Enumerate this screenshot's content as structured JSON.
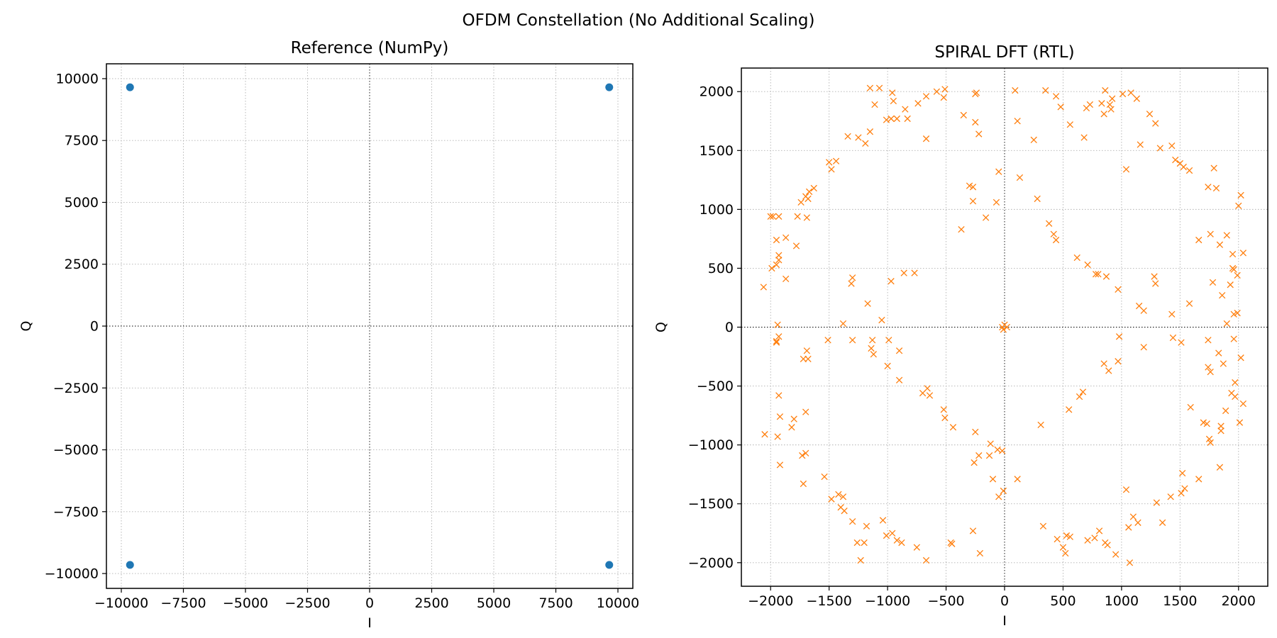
{
  "title": "OFDM Constellation (No Additional Scaling)",
  "chart_data": [
    {
      "type": "scatter",
      "title": "Reference (NumPy)",
      "xlabel": "I",
      "ylabel": "Q",
      "xlim": [
        -10600,
        10600
      ],
      "ylim": [
        -10600,
        10600
      ],
      "xticks": [
        -10000,
        -7500,
        -5000,
        -2500,
        0,
        2500,
        5000,
        7500,
        10000
      ],
      "yticks": [
        -10000,
        -7500,
        -5000,
        -2500,
        0,
        2500,
        5000,
        7500,
        10000
      ],
      "grid": true,
      "marker": "dot",
      "color": "#1f77b4",
      "series": [
        {
          "points": [
            [
              -9650,
              9650
            ],
            [
              9650,
              9650
            ],
            [
              -9650,
              -9650
            ],
            [
              9650,
              -9650
            ]
          ]
        }
      ]
    },
    {
      "type": "scatter",
      "title": "SPIRAL DFT (RTL)",
      "xlabel": "I",
      "ylabel": "Q",
      "xlim": [
        -2250,
        2250
      ],
      "ylim": [
        -2200,
        2200
      ],
      "xticks": [
        -2000,
        -1500,
        -1000,
        -500,
        0,
        500,
        1000,
        1500,
        2000
      ],
      "yticks": [
        -2000,
        -1500,
        -1000,
        -500,
        0,
        500,
        1000,
        1500,
        2000
      ],
      "grid": true,
      "marker": "x",
      "color": "#ff7f0e",
      "series": [
        {
          "points": [
            [
              -1150,
              2030
            ],
            [
              -1070,
              2030
            ],
            [
              -960,
              1990
            ],
            [
              -510,
              2020
            ],
            [
              -580,
              2000
            ],
            [
              -250,
              1980
            ],
            [
              90,
              2010
            ],
            [
              350,
              2010
            ],
            [
              860,
              2010
            ],
            [
              1010,
              1980
            ],
            [
              1080,
              1990
            ],
            [
              -1110,
              1890
            ],
            [
              -950,
              1920
            ],
            [
              -850,
              1850
            ],
            [
              -740,
              1900
            ],
            [
              -670,
              1960
            ],
            [
              -520,
              1950
            ],
            [
              -240,
              1990
            ],
            [
              440,
              1960
            ],
            [
              480,
              1870
            ],
            [
              700,
              1860
            ],
            [
              730,
              1890
            ],
            [
              830,
              1900
            ],
            [
              900,
              1890
            ],
            [
              920,
              1940
            ],
            [
              1130,
              1940
            ],
            [
              -1010,
              1760
            ],
            [
              -970,
              1770
            ],
            [
              -920,
              1770
            ],
            [
              -830,
              1770
            ],
            [
              -350,
              1800
            ],
            [
              -250,
              1740
            ],
            [
              110,
              1750
            ],
            [
              560,
              1720
            ],
            [
              850,
              1810
            ],
            [
              910,
              1850
            ],
            [
              1240,
              1810
            ],
            [
              1290,
              1730
            ],
            [
              -1340,
              1620
            ],
            [
              -1250,
              1610
            ],
            [
              -1190,
              1560
            ],
            [
              -1150,
              1660
            ],
            [
              -670,
              1600
            ],
            [
              -220,
              1640
            ],
            [
              250,
              1590
            ],
            [
              680,
              1610
            ],
            [
              1160,
              1550
            ],
            [
              1330,
              1520
            ],
            [
              1430,
              1540
            ],
            [
              -1500,
              1400
            ],
            [
              -1440,
              1410
            ],
            [
              -1480,
              1340
            ],
            [
              1460,
              1420
            ],
            [
              1500,
              1390
            ],
            [
              1530,
              1360
            ],
            [
              1580,
              1330
            ],
            [
              1790,
              1350
            ],
            [
              1040,
              1340
            ],
            [
              -50,
              1320
            ],
            [
              130,
              1270
            ],
            [
              -1630,
              1180
            ],
            [
              -1670,
              1150
            ],
            [
              -1700,
              1110
            ],
            [
              -1740,
              1060
            ],
            [
              -1680,
              1090
            ],
            [
              -300,
              1200
            ],
            [
              -270,
              1190
            ],
            [
              -270,
              1070
            ],
            [
              -70,
              1060
            ],
            [
              280,
              1090
            ],
            [
              1740,
              1190
            ],
            [
              1810,
              1180
            ],
            [
              -2000,
              940
            ],
            [
              -1980,
              940
            ],
            [
              -1930,
              940
            ],
            [
              -1770,
              940
            ],
            [
              -1690,
              930
            ],
            [
              -160,
              930
            ],
            [
              380,
              880
            ],
            [
              2020,
              1120
            ],
            [
              2000,
              1030
            ],
            [
              -1950,
              740
            ],
            [
              -1870,
              760
            ],
            [
              -1780,
              690
            ],
            [
              -370,
              830
            ],
            [
              420,
              790
            ],
            [
              440,
              740
            ],
            [
              1660,
              740
            ],
            [
              1760,
              790
            ],
            [
              1840,
              700
            ],
            [
              1900,
              780
            ],
            [
              -1930,
              610
            ],
            [
              -1930,
              570
            ],
            [
              -1950,
              530
            ],
            [
              -1990,
              500
            ],
            [
              -1870,
              410
            ],
            [
              -2060,
              340
            ],
            [
              2040,
              630
            ],
            [
              1950,
              620
            ],
            [
              1960,
              490
            ],
            [
              1950,
              500
            ],
            [
              1990,
              440
            ],
            [
              -1300,
              420
            ],
            [
              -1310,
              370
            ],
            [
              -860,
              460
            ],
            [
              -770,
              460
            ],
            [
              -970,
              390
            ],
            [
              620,
              590
            ],
            [
              710,
              530
            ],
            [
              780,
              450
            ],
            [
              800,
              450
            ],
            [
              870,
              430
            ],
            [
              970,
              320
            ],
            [
              1280,
              430
            ],
            [
              1290,
              370
            ],
            [
              1930,
              360
            ],
            [
              1780,
              380
            ],
            [
              -1170,
              200
            ],
            [
              1150,
              180
            ],
            [
              1190,
              140
            ],
            [
              1580,
              200
            ],
            [
              1860,
              270
            ],
            [
              1960,
              110
            ],
            [
              1990,
              120
            ],
            [
              -1940,
              20
            ],
            [
              -1380,
              30
            ],
            [
              -1050,
              60
            ],
            [
              -20,
              0
            ],
            [
              0,
              20
            ],
            [
              20,
              0
            ],
            [
              -10,
              -20
            ],
            [
              1430,
              110
            ],
            [
              1900,
              30
            ],
            [
              -1930,
              -80
            ],
            [
              -1950,
              -120
            ],
            [
              -1510,
              -110
            ],
            [
              -1300,
              -110
            ],
            [
              -1130,
              -110
            ],
            [
              -1140,
              -180
            ],
            [
              -1120,
              -230
            ],
            [
              -990,
              -110
            ],
            [
              -900,
              -200
            ],
            [
              980,
              -80
            ],
            [
              1440,
              -90
            ],
            [
              1510,
              -130
            ],
            [
              1740,
              -110
            ],
            [
              1960,
              -100
            ],
            [
              1190,
              -170
            ],
            [
              1830,
              -220
            ],
            [
              1870,
              -310
            ],
            [
              2020,
              -260
            ],
            [
              -1950,
              -130
            ],
            [
              -1720,
              -270
            ],
            [
              -1690,
              -200
            ],
            [
              -1680,
              -270
            ],
            [
              -1000,
              -330
            ],
            [
              850,
              -310
            ],
            [
              970,
              -290
            ],
            [
              890,
              -370
            ],
            [
              1760,
              -380
            ],
            [
              1740,
              -340
            ],
            [
              1970,
              -470
            ],
            [
              -900,
              -450
            ],
            [
              -660,
              -520
            ],
            [
              -640,
              -580
            ],
            [
              -700,
              -560
            ],
            [
              -1930,
              -580
            ],
            [
              640,
              -590
            ],
            [
              670,
              -550
            ],
            [
              1940,
              -560
            ],
            [
              1970,
              -590
            ],
            [
              1890,
              -710
            ],
            [
              2040,
              -650
            ],
            [
              1590,
              -680
            ],
            [
              -1920,
              -760
            ],
            [
              -1940,
              -930
            ],
            [
              -2050,
              -910
            ],
            [
              -1800,
              -780
            ],
            [
              -1820,
              -850
            ],
            [
              -1700,
              -720
            ],
            [
              -520,
              -700
            ],
            [
              -510,
              -770
            ],
            [
              -440,
              -850
            ],
            [
              -250,
              -890
            ],
            [
              310,
              -830
            ],
            [
              550,
              -700
            ],
            [
              1730,
              -820
            ],
            [
              1700,
              -810
            ],
            [
              1750,
              -950
            ],
            [
              1760,
              -980
            ],
            [
              1850,
              -840
            ],
            [
              1850,
              -880
            ],
            [
              2010,
              -810
            ],
            [
              -1920,
              -1170
            ],
            [
              -1700,
              -1070
            ],
            [
              -1730,
              -1090
            ],
            [
              -260,
              -1150
            ],
            [
              -220,
              -1090
            ],
            [
              -120,
              -990
            ],
            [
              -60,
              -1040
            ],
            [
              -20,
              -1050
            ],
            [
              -130,
              -1090
            ],
            [
              -1540,
              -1270
            ],
            [
              -1720,
              -1330
            ],
            [
              -1480,
              -1460
            ],
            [
              -1420,
              -1420
            ],
            [
              -1380,
              -1440
            ],
            [
              -1400,
              -1530
            ],
            [
              -1370,
              -1560
            ],
            [
              -100,
              -1290
            ],
            [
              110,
              -1290
            ],
            [
              -10,
              -1390
            ],
            [
              -50,
              -1440
            ],
            [
              1040,
              -1380
            ],
            [
              1660,
              -1290
            ],
            [
              1520,
              -1240
            ],
            [
              1840,
              -1190
            ],
            [
              -1300,
              -1650
            ],
            [
              -1180,
              -1690
            ],
            [
              -1040,
              -1640
            ],
            [
              -1010,
              -1770
            ],
            [
              -960,
              -1750
            ],
            [
              -920,
              -1810
            ],
            [
              -880,
              -1830
            ],
            [
              -750,
              -1870
            ],
            [
              -450,
              -1840
            ],
            [
              -460,
              -1830
            ],
            [
              -270,
              -1730
            ],
            [
              330,
              -1690
            ],
            [
              530,
              -1770
            ],
            [
              560,
              -1780
            ],
            [
              710,
              -1810
            ],
            [
              770,
              -1790
            ],
            [
              810,
              -1730
            ],
            [
              860,
              -1830
            ],
            [
              880,
              -1850
            ],
            [
              1100,
              -1610
            ],
            [
              1140,
              -1660
            ],
            [
              1350,
              -1660
            ],
            [
              1300,
              -1490
            ],
            [
              1420,
              -1440
            ],
            [
              1510,
              -1410
            ],
            [
              1540,
              -1370
            ],
            [
              -1260,
              -1830
            ],
            [
              -1200,
              -1830
            ],
            [
              -1230,
              -1980
            ],
            [
              -670,
              -1980
            ],
            [
              -210,
              -1920
            ],
            [
              450,
              -1800
            ],
            [
              500,
              -1870
            ],
            [
              520,
              -1920
            ],
            [
              950,
              -1930
            ],
            [
              1070,
              -2000
            ],
            [
              1060,
              -1700
            ]
          ]
        }
      ]
    }
  ]
}
